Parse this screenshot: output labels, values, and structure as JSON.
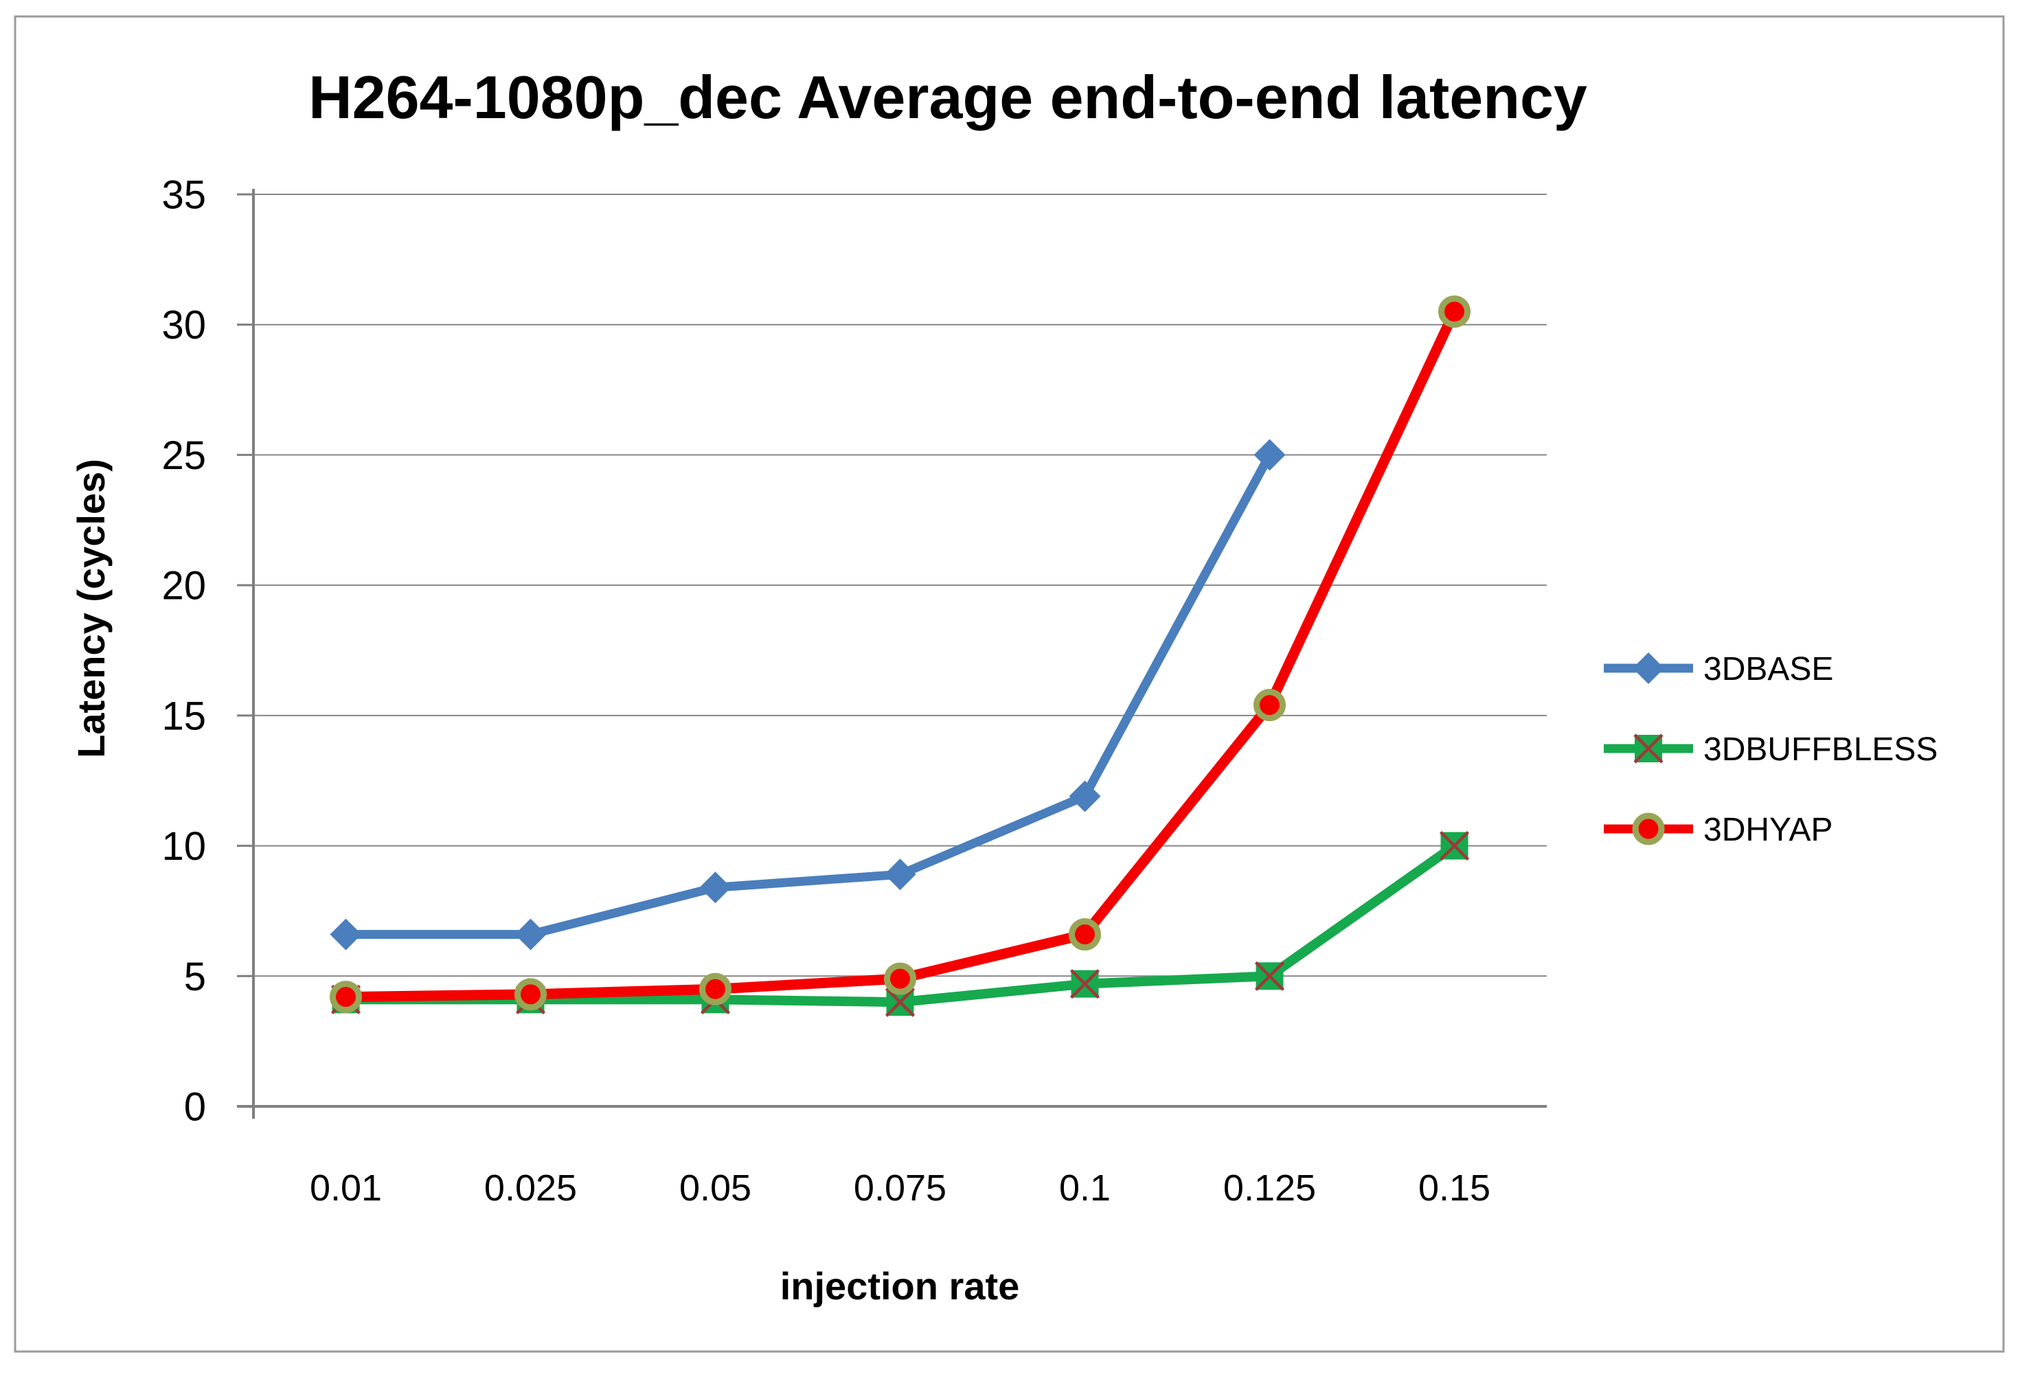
{
  "chart_data": {
    "type": "line",
    "title": "H264-1080p_dec Average end-to-end latency",
    "xlabel": "injection rate",
    "ylabel": "Latency (cycles)",
    "categories": [
      "0.01",
      "0.025",
      "0.05",
      "0.075",
      "0.1",
      "0.125",
      "0.15"
    ],
    "ylim": [
      0,
      35
    ],
    "ytick_step": 5,
    "ytick_labels": [
      "0",
      "5",
      "10",
      "15",
      "20",
      "25",
      "30",
      "35"
    ],
    "grid": "horizontal-gridlines-on",
    "legend_position": "right",
    "colors": {
      "gridline": "#878787",
      "axis": "#7f7f7f",
      "border": "#9b9b9b",
      "blue_series": "#4a7ebc",
      "green_series": "#17a94d",
      "red_series": "#f40000",
      "square_x_detail": "#9c3a38",
      "circle_ring": "#98a556"
    },
    "series": [
      {
        "name": "3DBASE",
        "marker": "diamond",
        "color": "#4a7ebc",
        "values": [
          6.6,
          6.6,
          8.4,
          8.9,
          11.9,
          25.0
        ]
      },
      {
        "name": "3DBUFFBLESS",
        "marker": "square-x",
        "color": "#17a94d",
        "values": [
          4.1,
          4.1,
          4.1,
          4.0,
          4.7,
          5.0,
          10.0
        ]
      },
      {
        "name": "3DHYAP",
        "marker": "circle",
        "color": "#f40000",
        "values": [
          4.2,
          4.3,
          4.5,
          4.9,
          6.6,
          15.4,
          30.5
        ]
      }
    ]
  }
}
